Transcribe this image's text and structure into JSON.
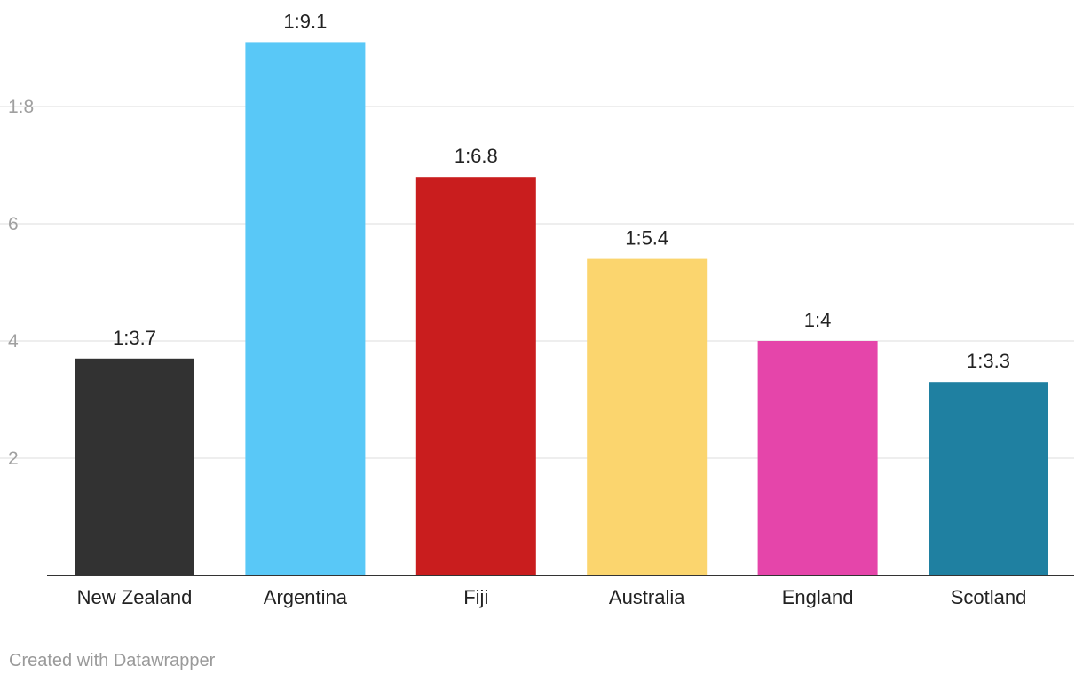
{
  "chart_data": {
    "type": "bar",
    "categories": [
      "New Zealand",
      "Argentina",
      "Fiji",
      "Australia",
      "England",
      "Scotland"
    ],
    "values": [
      3.7,
      9.1,
      6.8,
      5.4,
      4,
      3.3
    ],
    "data_labels": [
      "1:3.7",
      "1:9.1",
      "1:6.8",
      "1:5.4",
      "1:4",
      "1:3.3"
    ],
    "colors": [
      "#323232",
      "#59c8f7",
      "#c91d1e",
      "#fbd56e",
      "#e545aa",
      "#1f80a1"
    ],
    "y_ticks": [
      {
        "value": 2,
        "label": "2"
      },
      {
        "value": 4,
        "label": "4"
      },
      {
        "value": 6,
        "label": "6"
      },
      {
        "value": 8,
        "label": "1:8"
      }
    ],
    "ylim": [
      0,
      10
    ],
    "grid": true,
    "title": "",
    "xlabel": "",
    "ylabel": ""
  },
  "footer": {
    "credit": "Created with Datawrapper"
  },
  "colors": {
    "grid": "#dedede",
    "baseline": "#333333",
    "tick_label": "#a0a0a0",
    "text": "#222222"
  }
}
